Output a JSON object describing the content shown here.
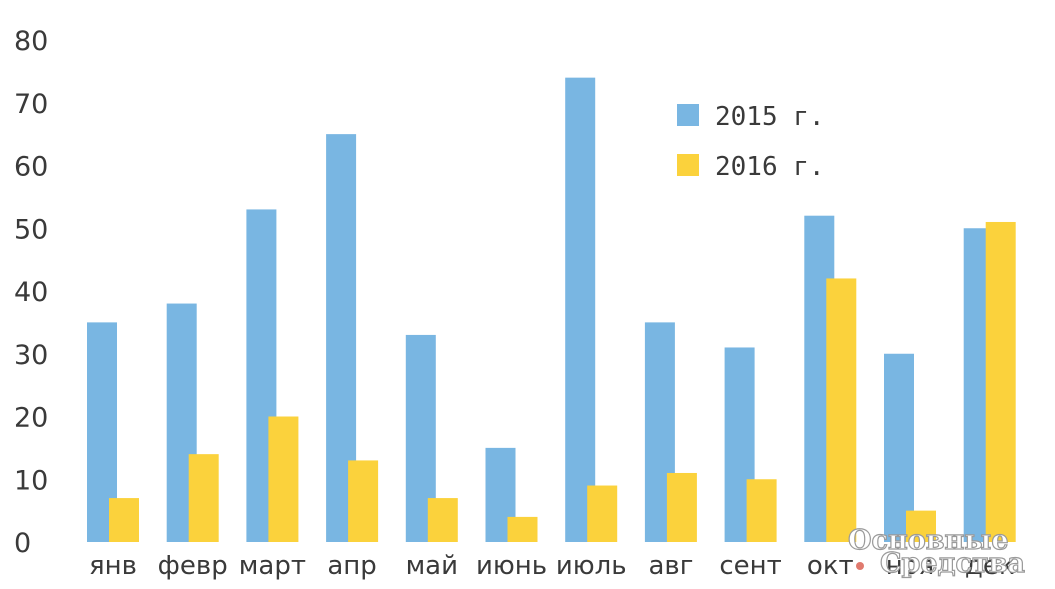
{
  "chart_data": {
    "type": "bar",
    "categories": [
      "янв",
      "февр",
      "март",
      "апр",
      "май",
      "июнь",
      "июль",
      "авг",
      "сент",
      "окт",
      "ноя",
      "дек"
    ],
    "series": [
      {
        "name": "2015 г.",
        "color": "#79b6e2",
        "values": [
          35,
          38,
          53,
          65,
          33,
          15,
          74,
          35,
          31,
          52,
          30,
          50
        ]
      },
      {
        "name": "2016 г.",
        "color": "#fbd23c",
        "values": [
          7,
          14,
          20,
          13,
          7,
          4,
          9,
          11,
          10,
          42,
          5,
          51
        ]
      }
    ],
    "yticks": [
      0,
      10,
      20,
      30,
      40,
      50,
      60,
      70,
      80
    ],
    "ylim": [
      0,
      80
    ],
    "title": "",
    "xlabel": "",
    "ylabel": "",
    "grid": false,
    "legend_position": "top-right"
  },
  "watermark": {
    "line1": "Основные",
    "line2": "Средства",
    "dot_color": "#e07a6e"
  }
}
